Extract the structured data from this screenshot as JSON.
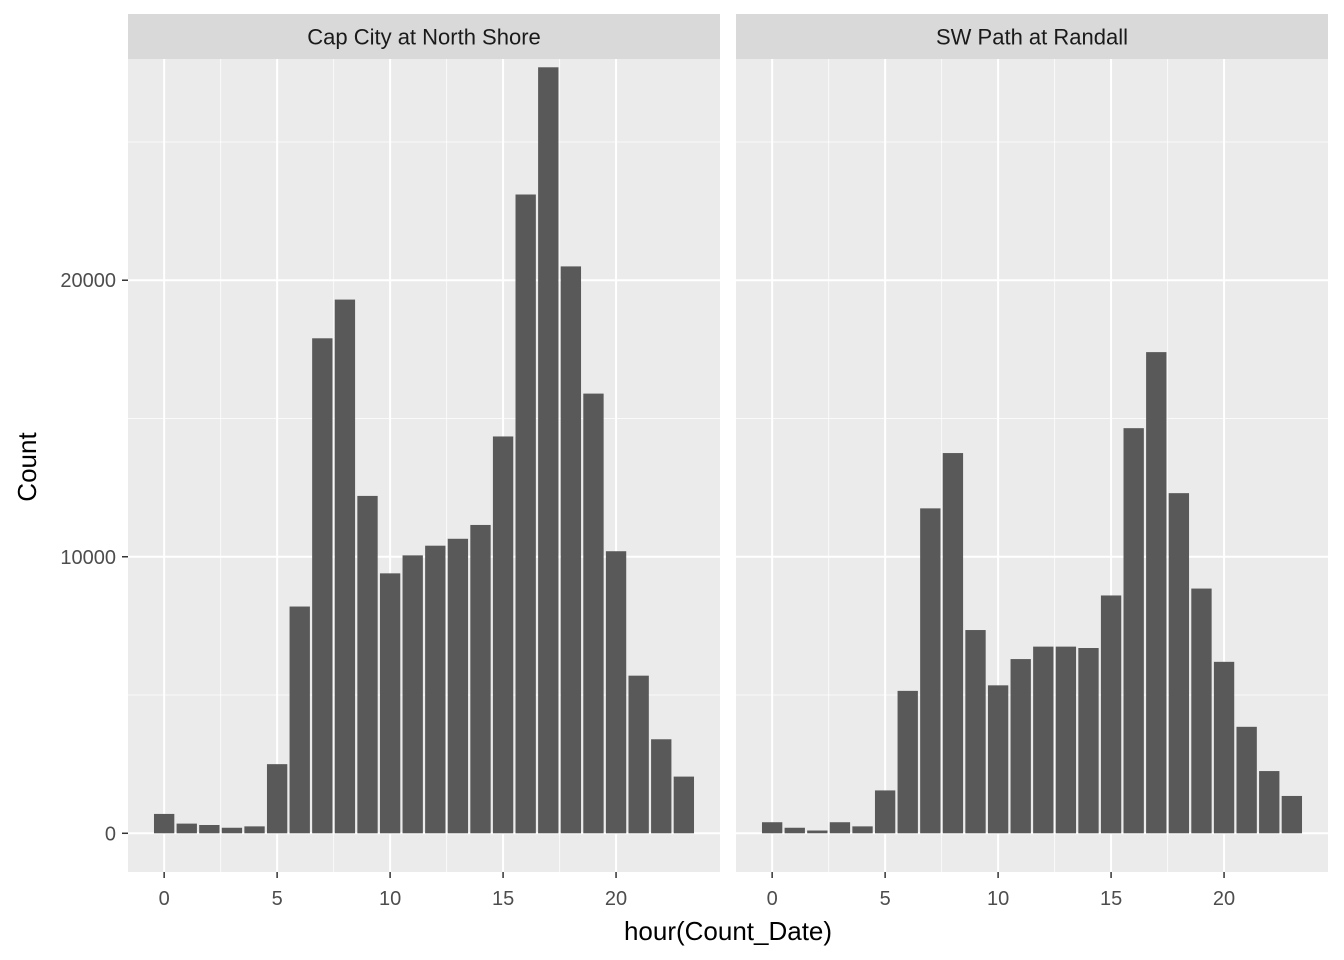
{
  "chart_data": {
    "type": "bar",
    "xlabel": "hour(Count_Date)",
    "ylabel": "Count",
    "x": [
      0,
      1,
      2,
      3,
      4,
      5,
      6,
      7,
      8,
      9,
      10,
      11,
      12,
      13,
      14,
      15,
      16,
      17,
      18,
      19,
      20,
      21,
      22,
      23
    ],
    "xlim": [
      -1.6,
      24.6
    ],
    "ylim": [
      -1400,
      28000
    ],
    "x_ticks": [
      0,
      5,
      10,
      15,
      20
    ],
    "y_ticks": [
      0,
      10000,
      20000
    ],
    "grid": true,
    "colors": {
      "panel_bg": "#ebebeb",
      "strip_bg": "#d9d9d9",
      "bar": "#595959",
      "grid": "#ffffff"
    },
    "panels": [
      {
        "title": "Cap City at North Shore",
        "values": [
          700,
          350,
          300,
          200,
          250,
          2500,
          8200,
          17900,
          19300,
          12200,
          9400,
          10050,
          10400,
          10650,
          11150,
          14350,
          23100,
          27700,
          20500,
          15900,
          10200,
          5700,
          3400,
          2050
        ]
      },
      {
        "title": "SW Path at Randall",
        "values": [
          400,
          200,
          100,
          400,
          250,
          1550,
          5150,
          11750,
          13750,
          7350,
          5350,
          6300,
          6750,
          6750,
          6700,
          8600,
          14650,
          17400,
          12300,
          8850,
          6200,
          3850,
          2250,
          1350
        ]
      }
    ]
  }
}
